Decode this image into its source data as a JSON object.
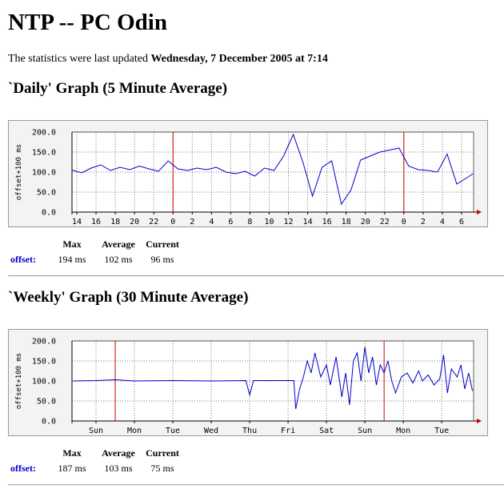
{
  "header": {
    "title": "NTP -- PC Odin",
    "updated_prefix": "The statistics were last updated",
    "updated_at": "Wednesday, 7 December 2005 at 7:14"
  },
  "chart_data": [
    {
      "type": "line",
      "title": "`Daily' Graph (5 Minute Average)",
      "y_label": "offset+100 ms",
      "color": "#0000cc",
      "grid": true,
      "red_lines": [
        0,
        24
      ],
      "xlim": [
        -10.5,
        31.25
      ],
      "ylim": [
        0,
        200
      ],
      "xticks": [
        {
          "value": -10,
          "label": "14"
        },
        {
          "value": -8,
          "label": "16"
        },
        {
          "value": -6,
          "label": "18"
        },
        {
          "value": -4,
          "label": "20"
        },
        {
          "value": -2,
          "label": "22"
        },
        0,
        2,
        4,
        6,
        8,
        10,
        12,
        14,
        16,
        18,
        20,
        22,
        {
          "value": 24,
          "label": "0"
        },
        {
          "value": 26,
          "label": "2"
        },
        {
          "value": 28,
          "label": "4"
        },
        {
          "value": 30,
          "label": "6"
        }
      ],
      "yticks": [
        {
          "value": 0,
          "label": "0.0"
        },
        {
          "value": 50,
          "label": "50.0"
        },
        {
          "value": 100,
          "label": "100.0"
        },
        {
          "value": 150,
          "label": "150.0"
        },
        {
          "value": 200,
          "label": "200.0"
        }
      ],
      "x": [
        -10.5,
        -9.5,
        -8.5,
        -7.5,
        -6.5,
        -5.5,
        -4.5,
        -3.5,
        -2.5,
        -1.5,
        -0.5,
        0.5,
        1.5,
        2.5,
        3.5,
        4.5,
        5.5,
        6.5,
        7.5,
        8.5,
        9.5,
        10.5,
        11.5,
        12.5,
        13.5,
        14.5,
        15.5,
        16.5,
        17.5,
        18.5,
        19.5,
        20.5,
        21.5,
        22.5,
        23.5,
        24.5,
        25.5,
        26.5,
        27.5,
        28.5,
        29.5,
        30.5,
        31.2
      ],
      "values": [
        105,
        98,
        110,
        118,
        104,
        112,
        106,
        115,
        108,
        102,
        128,
        108,
        104,
        110,
        106,
        112,
        100,
        96,
        102,
        90,
        110,
        104,
        140,
        194,
        125,
        40,
        112,
        128,
        20,
        55,
        130,
        140,
        150,
        155,
        160,
        115,
        106,
        104,
        100,
        145,
        70,
        85,
        96
      ],
      "stats": {
        "headers": [
          "Max",
          "Average",
          "Current"
        ],
        "row_label": "offset:",
        "values": [
          "194 ms",
          "102 ms",
          "96 ms"
        ]
      }
    },
    {
      "type": "line",
      "title": "`Weekly' Graph (30 Minute Average)",
      "y_label": "offset+100 ms",
      "color": "#0000cc",
      "grid": true,
      "red_lines": [
        1,
        8
      ],
      "xlim": [
        -0.125,
        10.33
      ],
      "ylim": [
        0,
        200
      ],
      "xticks": [
        {
          "value": 0.5,
          "label": "Sun"
        },
        {
          "value": 1.5,
          "label": "Mon"
        },
        {
          "value": 2.5,
          "label": "Tue"
        },
        {
          "value": 3.5,
          "label": "Wed"
        },
        {
          "value": 4.5,
          "label": "Thu"
        },
        {
          "value": 5.5,
          "label": "Fri"
        },
        {
          "value": 6.5,
          "label": "Sat"
        },
        {
          "value": 7.5,
          "label": "Sun"
        },
        {
          "value": 8.5,
          "label": "Mon"
        },
        {
          "value": 9.5,
          "label": "Tue"
        }
      ],
      "yticks": [
        {
          "value": 0,
          "label": "0.0"
        },
        {
          "value": 50,
          "label": "50.0"
        },
        {
          "value": 100,
          "label": "100.0"
        },
        {
          "value": 150,
          "label": "150.0"
        },
        {
          "value": 200,
          "label": "200.0"
        }
      ],
      "x": [
        -0.1,
        0.5,
        1.0,
        1.5,
        2.5,
        3.5,
        4.4,
        4.5,
        4.6,
        5.5,
        5.65,
        5.7,
        5.8,
        5.9,
        6.0,
        6.1,
        6.2,
        6.35,
        6.5,
        6.6,
        6.75,
        6.9,
        7.0,
        7.1,
        7.2,
        7.3,
        7.4,
        7.5,
        7.6,
        7.7,
        7.8,
        7.9,
        8.0,
        8.1,
        8.2,
        8.3,
        8.45,
        8.6,
        8.75,
        8.9,
        9.0,
        9.15,
        9.3,
        9.45,
        9.55,
        9.65,
        9.75,
        9.9,
        10.0,
        10.1,
        10.2,
        10.3
      ],
      "values": [
        100,
        101,
        103,
        100,
        101,
        100,
        101,
        65,
        101,
        101,
        101,
        30,
        80,
        110,
        150,
        120,
        170,
        110,
        140,
        90,
        160,
        60,
        120,
        40,
        150,
        170,
        100,
        185,
        120,
        160,
        90,
        140,
        120,
        150,
        100,
        70,
        110,
        120,
        95,
        125,
        100,
        115,
        90,
        105,
        165,
        70,
        130,
        110,
        140,
        80,
        120,
        75
      ],
      "stats": {
        "headers": [
          "Max",
          "Average",
          "Current"
        ],
        "row_label": "offset:",
        "values": [
          "187 ms",
          "103 ms",
          "75 ms"
        ]
      }
    }
  ]
}
